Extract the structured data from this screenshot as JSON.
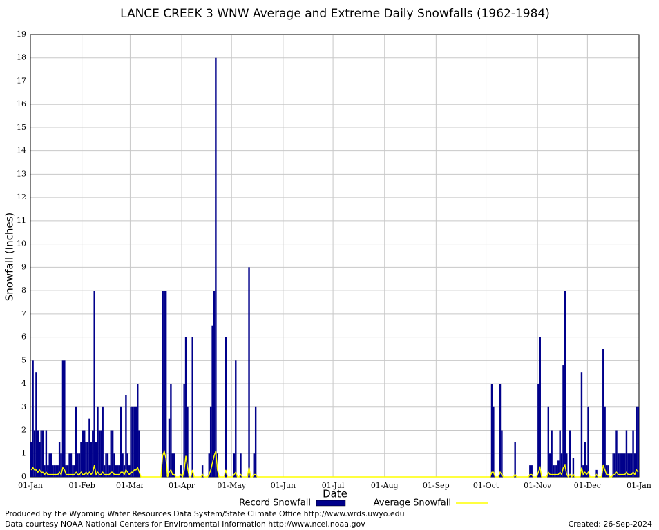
{
  "chart_data": {
    "type": "bar",
    "title": "LANCE CREEK 3 WNW Average and Extreme Daily Snowfalls (1962-1984)",
    "xlabel": "Date",
    "ylabel": "Snowfall (Inches)",
    "xlim": [
      0,
      366
    ],
    "ylim": [
      0,
      19
    ],
    "xticks": [
      {
        "value": 0,
        "label": "01-Jan"
      },
      {
        "value": 31,
        "label": "01-Feb"
      },
      {
        "value": 60,
        "label": "01-Mar"
      },
      {
        "value": 91,
        "label": "01-Apr"
      },
      {
        "value": 121,
        "label": "01-May"
      },
      {
        "value": 152,
        "label": "01-Jun"
      },
      {
        "value": 182,
        "label": "01-Jul"
      },
      {
        "value": 213,
        "label": "01-Aug"
      },
      {
        "value": 244,
        "label": "01-Sep"
      },
      {
        "value": 274,
        "label": "01-Oct"
      },
      {
        "value": 305,
        "label": "01-Nov"
      },
      {
        "value": 335,
        "label": "01-Dec"
      },
      {
        "value": 366,
        "label": "01-Jan"
      }
    ],
    "yticks": [
      0,
      1,
      2,
      3,
      4,
      5,
      6,
      7,
      8,
      9,
      10,
      11,
      12,
      13,
      14,
      15,
      16,
      17,
      18,
      19
    ],
    "grid": true,
    "series": [
      {
        "name": "Record Snowfall",
        "type": "bar",
        "color": "#00008b",
        "values": [
          1.5,
          5,
          2,
          4.5,
          2,
          1.5,
          2,
          2,
          0.5,
          2,
          0.5,
          1,
          1,
          0.5,
          0.5,
          0.5,
          0.5,
          1.5,
          1,
          5,
          5,
          0.5,
          0.5,
          1,
          1,
          0.5,
          0.5,
          3,
          1,
          1,
          1.5,
          2,
          2,
          1.5,
          1.5,
          2.5,
          1.5,
          2,
          8,
          1.5,
          3,
          2,
          2,
          3,
          0.5,
          1,
          1,
          0.5,
          2,
          2,
          1,
          0.5,
          0.5,
          0.5,
          3,
          1,
          0.5,
          3.5,
          1,
          0.5,
          3,
          3,
          3,
          3,
          4,
          2,
          0,
          0,
          0,
          0,
          0,
          0,
          0,
          0,
          0,
          0,
          0,
          0,
          0,
          8,
          8,
          8,
          0,
          2.5,
          4,
          1,
          1,
          0,
          0,
          0,
          0.5,
          0,
          4,
          6,
          3,
          0,
          0,
          6,
          0,
          0,
          0,
          0,
          0,
          0.5,
          0,
          0,
          0,
          1,
          3,
          6.5,
          8,
          18,
          1,
          0,
          0,
          0,
          0,
          6,
          0,
          0,
          0,
          0,
          1,
          5,
          0,
          0,
          1,
          0,
          0,
          0,
          0,
          9,
          0,
          0,
          1,
          3,
          0,
          0,
          0,
          0,
          0,
          0,
          0,
          0,
          0,
          0,
          0,
          0,
          0,
          0,
          0,
          0,
          0,
          0,
          0,
          0,
          0,
          0,
          0,
          0,
          0,
          0,
          0,
          0,
          0,
          0,
          0,
          0,
          0,
          0,
          0,
          0,
          0,
          0,
          0,
          0,
          0,
          0,
          0,
          0,
          0,
          0,
          0,
          0,
          0,
          0,
          0,
          0,
          0,
          0,
          0,
          0,
          0,
          0,
          0,
          0,
          0,
          0,
          0,
          0,
          0,
          0,
          0,
          0,
          0,
          0,
          0,
          0,
          0,
          0,
          0,
          0,
          0,
          0,
          0,
          0,
          0,
          0,
          0,
          0,
          0,
          0,
          0,
          0,
          0,
          0,
          0,
          0,
          0,
          0,
          0,
          0,
          0,
          0,
          0,
          0,
          0,
          0,
          0,
          0,
          0,
          0,
          0,
          0,
          0,
          0,
          0,
          0,
          0,
          0,
          0,
          0,
          0,
          0,
          0,
          0,
          0,
          0,
          0,
          0,
          0,
          0,
          0,
          0,
          0,
          0,
          0,
          0,
          0,
          0,
          0,
          0,
          0,
          0,
          0,
          0,
          0,
          4,
          3,
          0,
          0,
          0,
          4,
          2,
          0,
          0,
          0,
          0,
          0,
          0,
          0,
          1.5,
          0,
          0,
          0,
          0,
          0,
          0,
          0,
          0,
          0.5,
          0.5,
          0,
          0,
          0,
          4,
          6,
          0,
          0,
          0,
          0,
          3,
          1,
          2,
          0.5,
          0.5,
          0.5,
          0.7,
          2,
          1,
          4.8,
          8,
          1,
          0,
          2,
          0,
          0.8,
          0,
          0,
          0,
          0,
          4.5,
          0.5,
          1.5,
          0.5,
          3,
          0,
          0,
          0,
          0,
          0.3,
          0,
          0,
          0,
          5.5,
          3,
          0.5,
          0.5,
          0,
          0,
          1,
          1,
          2,
          1,
          1,
          1,
          1,
          1,
          2,
          1,
          1,
          1,
          2,
          1,
          3,
          3
        ]
      },
      {
        "name": "Average Snowfall",
        "type": "line",
        "color": "#ffff00",
        "values": [
          0.3,
          0.4,
          0.3,
          0.3,
          0.2,
          0.3,
          0.2,
          0.2,
          0.1,
          0.2,
          0.1,
          0.1,
          0.1,
          0.1,
          0.1,
          0.1,
          0.1,
          0.2,
          0.1,
          0.4,
          0.3,
          0.1,
          0.1,
          0.1,
          0.1,
          0.1,
          0.1,
          0.2,
          0.1,
          0.1,
          0.2,
          0.1,
          0.1,
          0.2,
          0.1,
          0.2,
          0.1,
          0.2,
          0.5,
          0.1,
          0.2,
          0.1,
          0.1,
          0.2,
          0.1,
          0.1,
          0.1,
          0.1,
          0.2,
          0.2,
          0.1,
          0.1,
          0.1,
          0.1,
          0.2,
          0.2,
          0.1,
          0.3,
          0.2,
          0.1,
          0.2,
          0.2,
          0.3,
          0.3,
          0.4,
          0.2,
          0,
          0,
          0,
          0,
          0,
          0,
          0,
          0,
          0,
          0,
          0,
          0,
          0,
          0.9,
          1.1,
          0.8,
          0,
          0.2,
          0.3,
          0.1,
          0.1,
          0,
          0,
          0,
          0.1,
          0,
          0.3,
          0.9,
          0.4,
          0,
          0,
          0.3,
          0,
          0,
          0,
          0,
          0,
          0.1,
          0,
          0,
          0,
          0.1,
          0.3,
          0.6,
          0.9,
          1.1,
          0.3,
          0,
          0,
          0,
          0,
          0.3,
          0,
          0,
          0,
          0,
          0.1,
          0.2,
          0,
          0,
          0.1,
          0,
          0,
          0,
          0,
          0.4,
          0,
          0,
          0.1,
          0.1,
          0,
          0,
          0,
          0,
          0,
          0,
          0,
          0,
          0,
          0,
          0,
          0,
          0,
          0,
          0,
          0,
          0,
          0,
          0,
          0,
          0,
          0,
          0,
          0,
          0,
          0,
          0,
          0,
          0,
          0,
          0,
          0,
          0,
          0,
          0,
          0,
          0,
          0,
          0,
          0,
          0,
          0,
          0,
          0,
          0,
          0,
          0,
          0,
          0,
          0,
          0,
          0,
          0,
          0,
          0,
          0,
          0,
          0,
          0,
          0,
          0,
          0,
          0,
          0,
          0,
          0,
          0,
          0,
          0,
          0,
          0,
          0,
          0,
          0,
          0,
          0,
          0,
          0,
          0,
          0,
          0,
          0,
          0,
          0,
          0,
          0,
          0,
          0,
          0,
          0,
          0,
          0,
          0,
          0,
          0,
          0,
          0,
          0,
          0,
          0,
          0,
          0,
          0,
          0,
          0,
          0,
          0,
          0,
          0,
          0,
          0,
          0,
          0,
          0,
          0,
          0,
          0,
          0,
          0,
          0,
          0,
          0,
          0,
          0,
          0,
          0,
          0,
          0,
          0,
          0,
          0,
          0,
          0,
          0,
          0,
          0,
          0,
          0,
          0,
          0,
          0,
          0.2,
          0.2,
          0,
          0,
          0,
          0.2,
          0.1,
          0,
          0,
          0,
          0,
          0,
          0,
          0,
          0.1,
          0,
          0,
          0,
          0,
          0,
          0,
          0,
          0,
          0.1,
          0.1,
          0,
          0,
          0,
          0.2,
          0.4,
          0,
          0,
          0,
          0,
          0.2,
          0.1,
          0.1,
          0.1,
          0.1,
          0.1,
          0.1,
          0.2,
          0.1,
          0.4,
          0.5,
          0.1,
          0,
          0.1,
          0,
          0.1,
          0,
          0,
          0,
          0,
          0.4,
          0.1,
          0.2,
          0.1,
          0.2,
          0,
          0,
          0,
          0,
          0.1,
          0,
          0,
          0,
          0.5,
          0.3,
          0.1,
          0.1,
          0,
          0,
          0.1,
          0.1,
          0.2,
          0.1,
          0.1,
          0.1,
          0.1,
          0.1,
          0.2,
          0.1,
          0.1,
          0.1,
          0.2,
          0.1,
          0.3,
          0.2
        ]
      }
    ],
    "notes": [
      "Produced by the Wyoming Water Resources Data System/State Climate Office http://www.wrds.uwyo.edu",
      "Data courtesy NOAA National Centers for Environmental Information http://www.ncei.noaa.gov"
    ],
    "created": "Created: 26-Sep-2024"
  }
}
